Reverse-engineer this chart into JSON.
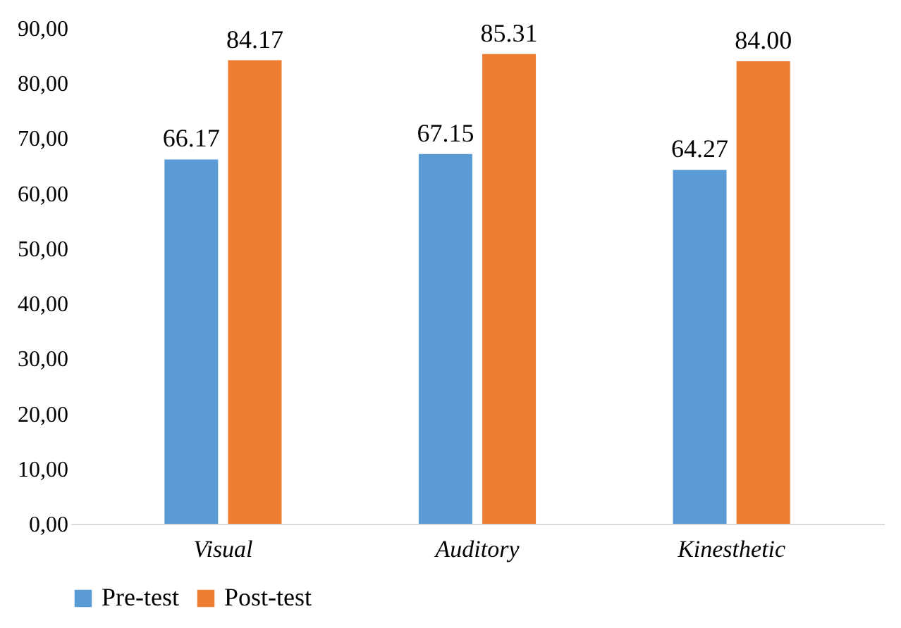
{
  "chart_data": {
    "type": "bar",
    "categories": [
      "Visual",
      "Auditory",
      "Kinesthetic"
    ],
    "series": [
      {
        "name": "Pre-test",
        "color": "#5b9bd5",
        "values": [
          66.17,
          67.15,
          64.27
        ]
      },
      {
        "name": "Post-test",
        "color": "#ed7d31",
        "values": [
          84.17,
          85.31,
          84.0
        ]
      }
    ],
    "ylim": [
      0,
      90
    ],
    "yticks": [
      {
        "value": 0,
        "label": "0,00"
      },
      {
        "value": 10,
        "label": "10,00"
      },
      {
        "value": 20,
        "label": "20,00"
      },
      {
        "value": 30,
        "label": "30,00"
      },
      {
        "value": 40,
        "label": "40,00"
      },
      {
        "value": 50,
        "label": "50,00"
      },
      {
        "value": 60,
        "label": "60,00"
      },
      {
        "value": 70,
        "label": "70,00"
      },
      {
        "value": 80,
        "label": "80,00"
      },
      {
        "value": 90,
        "label": "90,00"
      }
    ],
    "value_labels": [
      [
        "66.17",
        "67.15",
        "64.27"
      ],
      [
        "84.17",
        "85.31",
        "84.00"
      ]
    ],
    "grid": false,
    "legend": "bottom"
  }
}
